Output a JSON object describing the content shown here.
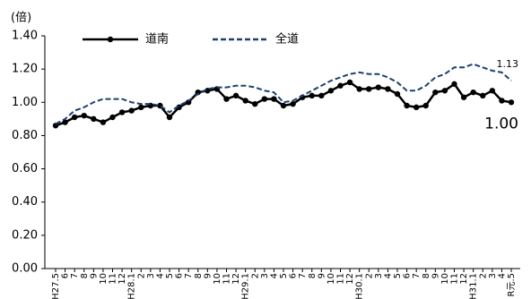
{
  "chart_data": {
    "type": "line",
    "y_unit_label": "(倍)",
    "categories": [
      "H27.5",
      "6",
      "7",
      "8",
      "9",
      "10",
      "11",
      "12",
      "H28.1",
      "2",
      "3",
      "4",
      "5",
      "6",
      "7",
      "8",
      "9",
      "10",
      "11",
      "12",
      "H29.1",
      "2",
      "3",
      "4",
      "5",
      "6",
      "7",
      "8",
      "9",
      "10",
      "11",
      "12",
      "H30.1",
      "2",
      "3",
      "4",
      "5",
      "6",
      "7",
      "8",
      "9",
      "10",
      "11",
      "12",
      "H31.1",
      "2",
      "3",
      "4",
      "R元.5"
    ],
    "series": [
      {
        "name": "道南",
        "color": "#000000",
        "style": "solid-marker",
        "values": [
          0.86,
          0.88,
          0.91,
          0.92,
          0.9,
          0.88,
          0.91,
          0.94,
          0.95,
          0.97,
          0.98,
          0.98,
          0.91,
          0.97,
          1.0,
          1.06,
          1.07,
          1.08,
          1.02,
          1.04,
          1.01,
          0.99,
          1.02,
          1.02,
          0.98,
          0.99,
          1.03,
          1.04,
          1.04,
          1.07,
          1.1,
          1.12,
          1.08,
          1.08,
          1.09,
          1.08,
          1.05,
          0.98,
          0.97,
          0.98,
          1.06,
          1.07,
          1.11,
          1.03,
          1.06,
          1.04,
          1.07,
          1.01,
          1.0
        ]
      },
      {
        "name": "全道",
        "color": "#1f3f6e",
        "style": "dashed",
        "values": [
          0.87,
          0.9,
          0.95,
          0.97,
          1.0,
          1.02,
          1.02,
          1.02,
          1.0,
          0.99,
          0.99,
          0.98,
          0.94,
          0.98,
          1.01,
          1.05,
          1.08,
          1.09,
          1.09,
          1.1,
          1.1,
          1.09,
          1.07,
          1.06,
          1.0,
          1.01,
          1.04,
          1.07,
          1.1,
          1.13,
          1.15,
          1.17,
          1.18,
          1.17,
          1.17,
          1.15,
          1.12,
          1.07,
          1.07,
          1.1,
          1.15,
          1.17,
          1.21,
          1.21,
          1.23,
          1.21,
          1.19,
          1.18,
          1.13
        ]
      }
    ],
    "annotations": [
      {
        "text": "1.13",
        "series": 1,
        "index": 48
      },
      {
        "text": "1.00",
        "series": 0,
        "index": 48
      }
    ],
    "ylim": [
      0,
      1.4
    ],
    "yticks": [
      {
        "value": 0,
        "label": "0.00"
      },
      {
        "value": 0.2,
        "label": "0.20"
      },
      {
        "value": 0.4,
        "label": "0.40"
      },
      {
        "value": 0.6,
        "label": "0.60"
      },
      {
        "value": 0.8,
        "label": "0.80"
      },
      {
        "value": 1,
        "label": "1.00"
      },
      {
        "value": 1.2,
        "label": "1.20"
      },
      {
        "value": 1.4,
        "label": "1.40"
      }
    ],
    "grid": false
  }
}
